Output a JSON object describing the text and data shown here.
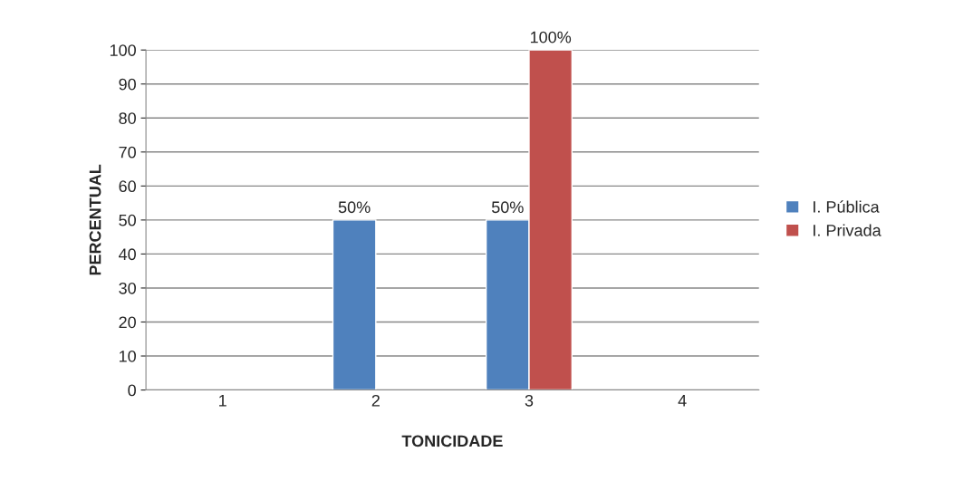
{
  "chart_data": {
    "type": "bar",
    "xlabel": "TONICIDADE",
    "ylabel": "PERCENTUAL",
    "categories": [
      "1",
      "2",
      "3",
      "4"
    ],
    "series": [
      {
        "name": "I. Pública",
        "color": "#4f81bd",
        "values": [
          null,
          50,
          50,
          null
        ],
        "value_labels": [
          null,
          "50%",
          "50%",
          null
        ]
      },
      {
        "name": "I. Privada",
        "color": "#c0504d",
        "values": [
          null,
          null,
          100,
          null
        ],
        "value_labels": [
          null,
          null,
          "100%",
          null
        ]
      }
    ],
    "ylim": [
      0,
      100
    ],
    "yticks": [
      0,
      10,
      20,
      30,
      40,
      50,
      60,
      70,
      80,
      90,
      100
    ],
    "grid": "y",
    "legend": "right"
  }
}
